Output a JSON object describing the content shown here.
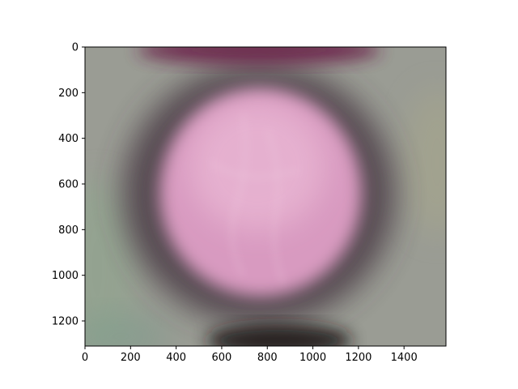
{
  "chart_data": {
    "type": "heatmap",
    "title": "",
    "xlabel": "",
    "ylabel": "",
    "xlim": [
      0,
      1584
    ],
    "ylim": [
      1310,
      0
    ],
    "grid": false,
    "x_ticks": [
      0,
      200,
      400,
      600,
      800,
      1000,
      1200,
      1400
    ],
    "y_ticks": [
      0,
      200,
      400,
      600,
      800,
      1000,
      1200
    ],
    "x_tick_labels": [
      "0",
      "200",
      "400",
      "600",
      "800",
      "1000",
      "1200",
      "1400"
    ],
    "y_tick_labels": [
      "0",
      "200",
      "400",
      "600",
      "800",
      "1000",
      "1200"
    ],
    "image": {
      "content": "blurred averaged photo: pink-lilac central blob on a grey-green background, darker purple ring around the blob",
      "colors": {
        "background": "#9a9c94",
        "ring": "#4a3a44",
        "center": "#d89ac0",
        "highlight": "#eab8d4",
        "top_band": "#6a2048",
        "bottom_band": "#1a1216"
      }
    }
  }
}
